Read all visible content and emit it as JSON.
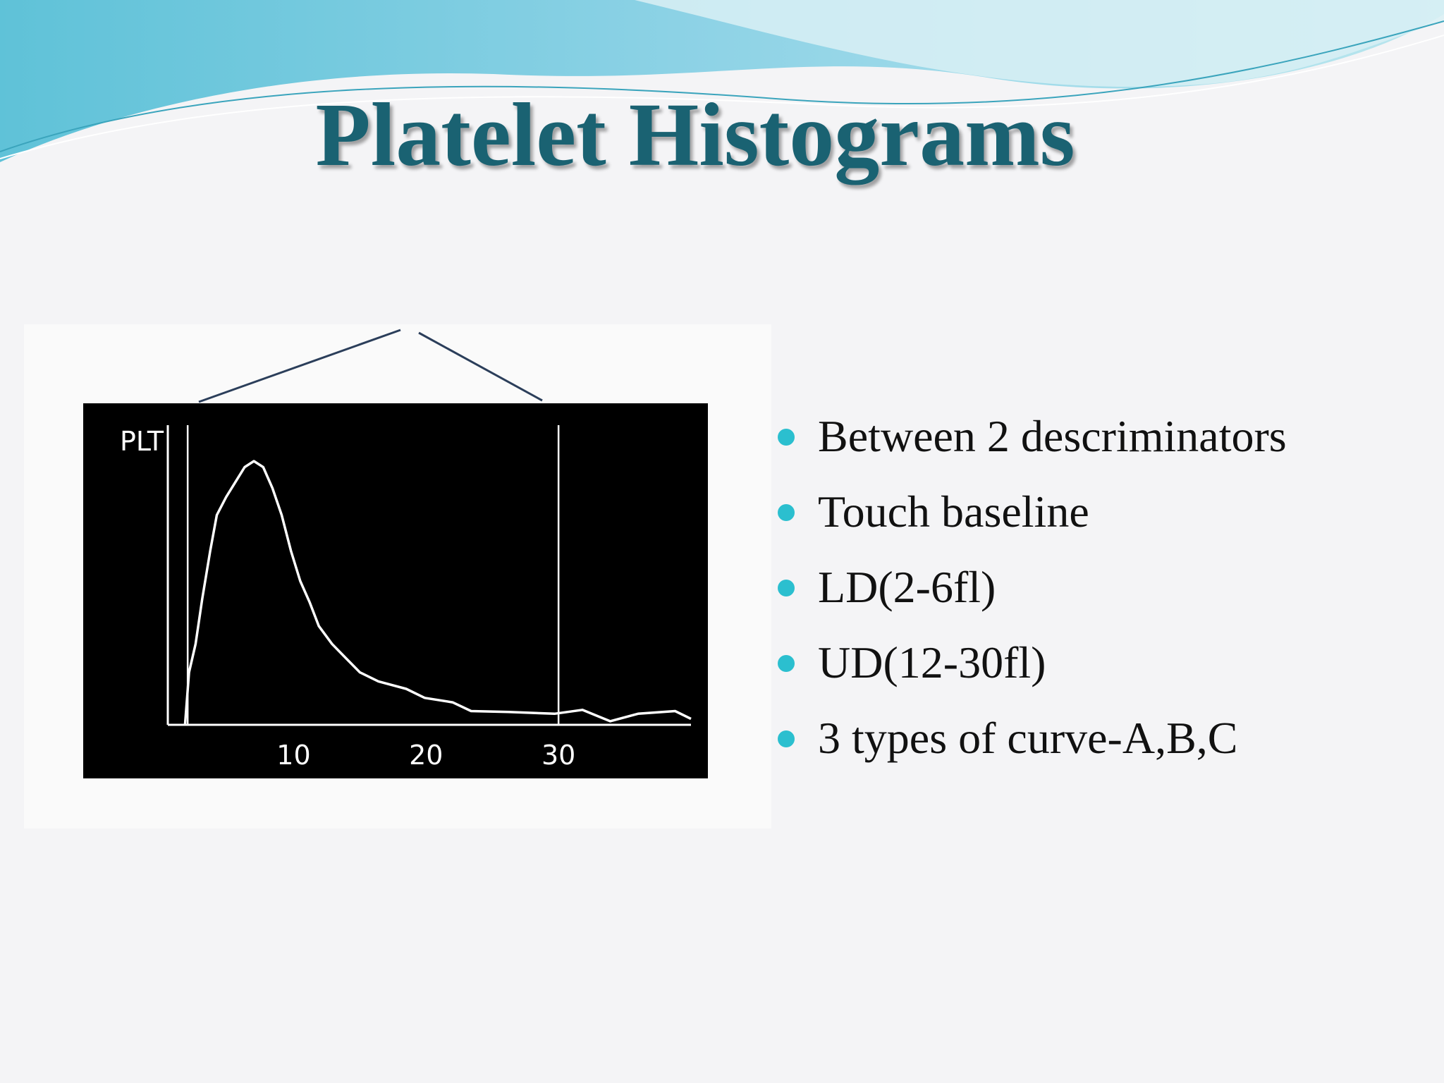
{
  "title": "Platelet Histograms",
  "bullets": [
    "Between 2 descriminators",
    "Touch baseline",
    "LD(2-6fl)",
    "UD(12-30fl)",
    "3 types of curve-A,B,C"
  ],
  "chart_data": {
    "type": "line",
    "y_label": "PLT",
    "x": [
      1.8,
      2.1,
      2.6,
      3.1,
      3.7,
      4.2,
      4.9,
      5.6,
      6.3,
      7.0,
      7.7,
      8.4,
      9.1,
      9.8,
      10.5,
      11.2,
      11.9,
      12.9,
      14.0,
      15.0,
      16.4,
      18.5,
      19.9,
      22.0,
      23.4,
      26.2,
      29.7,
      31.8,
      33.9,
      36.0,
      38.8,
      40.0
    ],
    "values": [
      0,
      17.5,
      27,
      42,
      58,
      70,
      76,
      81,
      86,
      88,
      86,
      79,
      70,
      58,
      48,
      41,
      33,
      27,
      22,
      17.5,
      14.5,
      12,
      9,
      7.5,
      4.6,
      4.3,
      3.7,
      5,
      1.2,
      3.7,
      4.6,
      2
    ],
    "color": "#ffffff",
    "xlim": [
      0.5,
      40
    ],
    "xticks": [
      10,
      20,
      30
    ],
    "ylim": [
      0,
      100
    ],
    "discriminators": [
      2,
      30
    ]
  }
}
